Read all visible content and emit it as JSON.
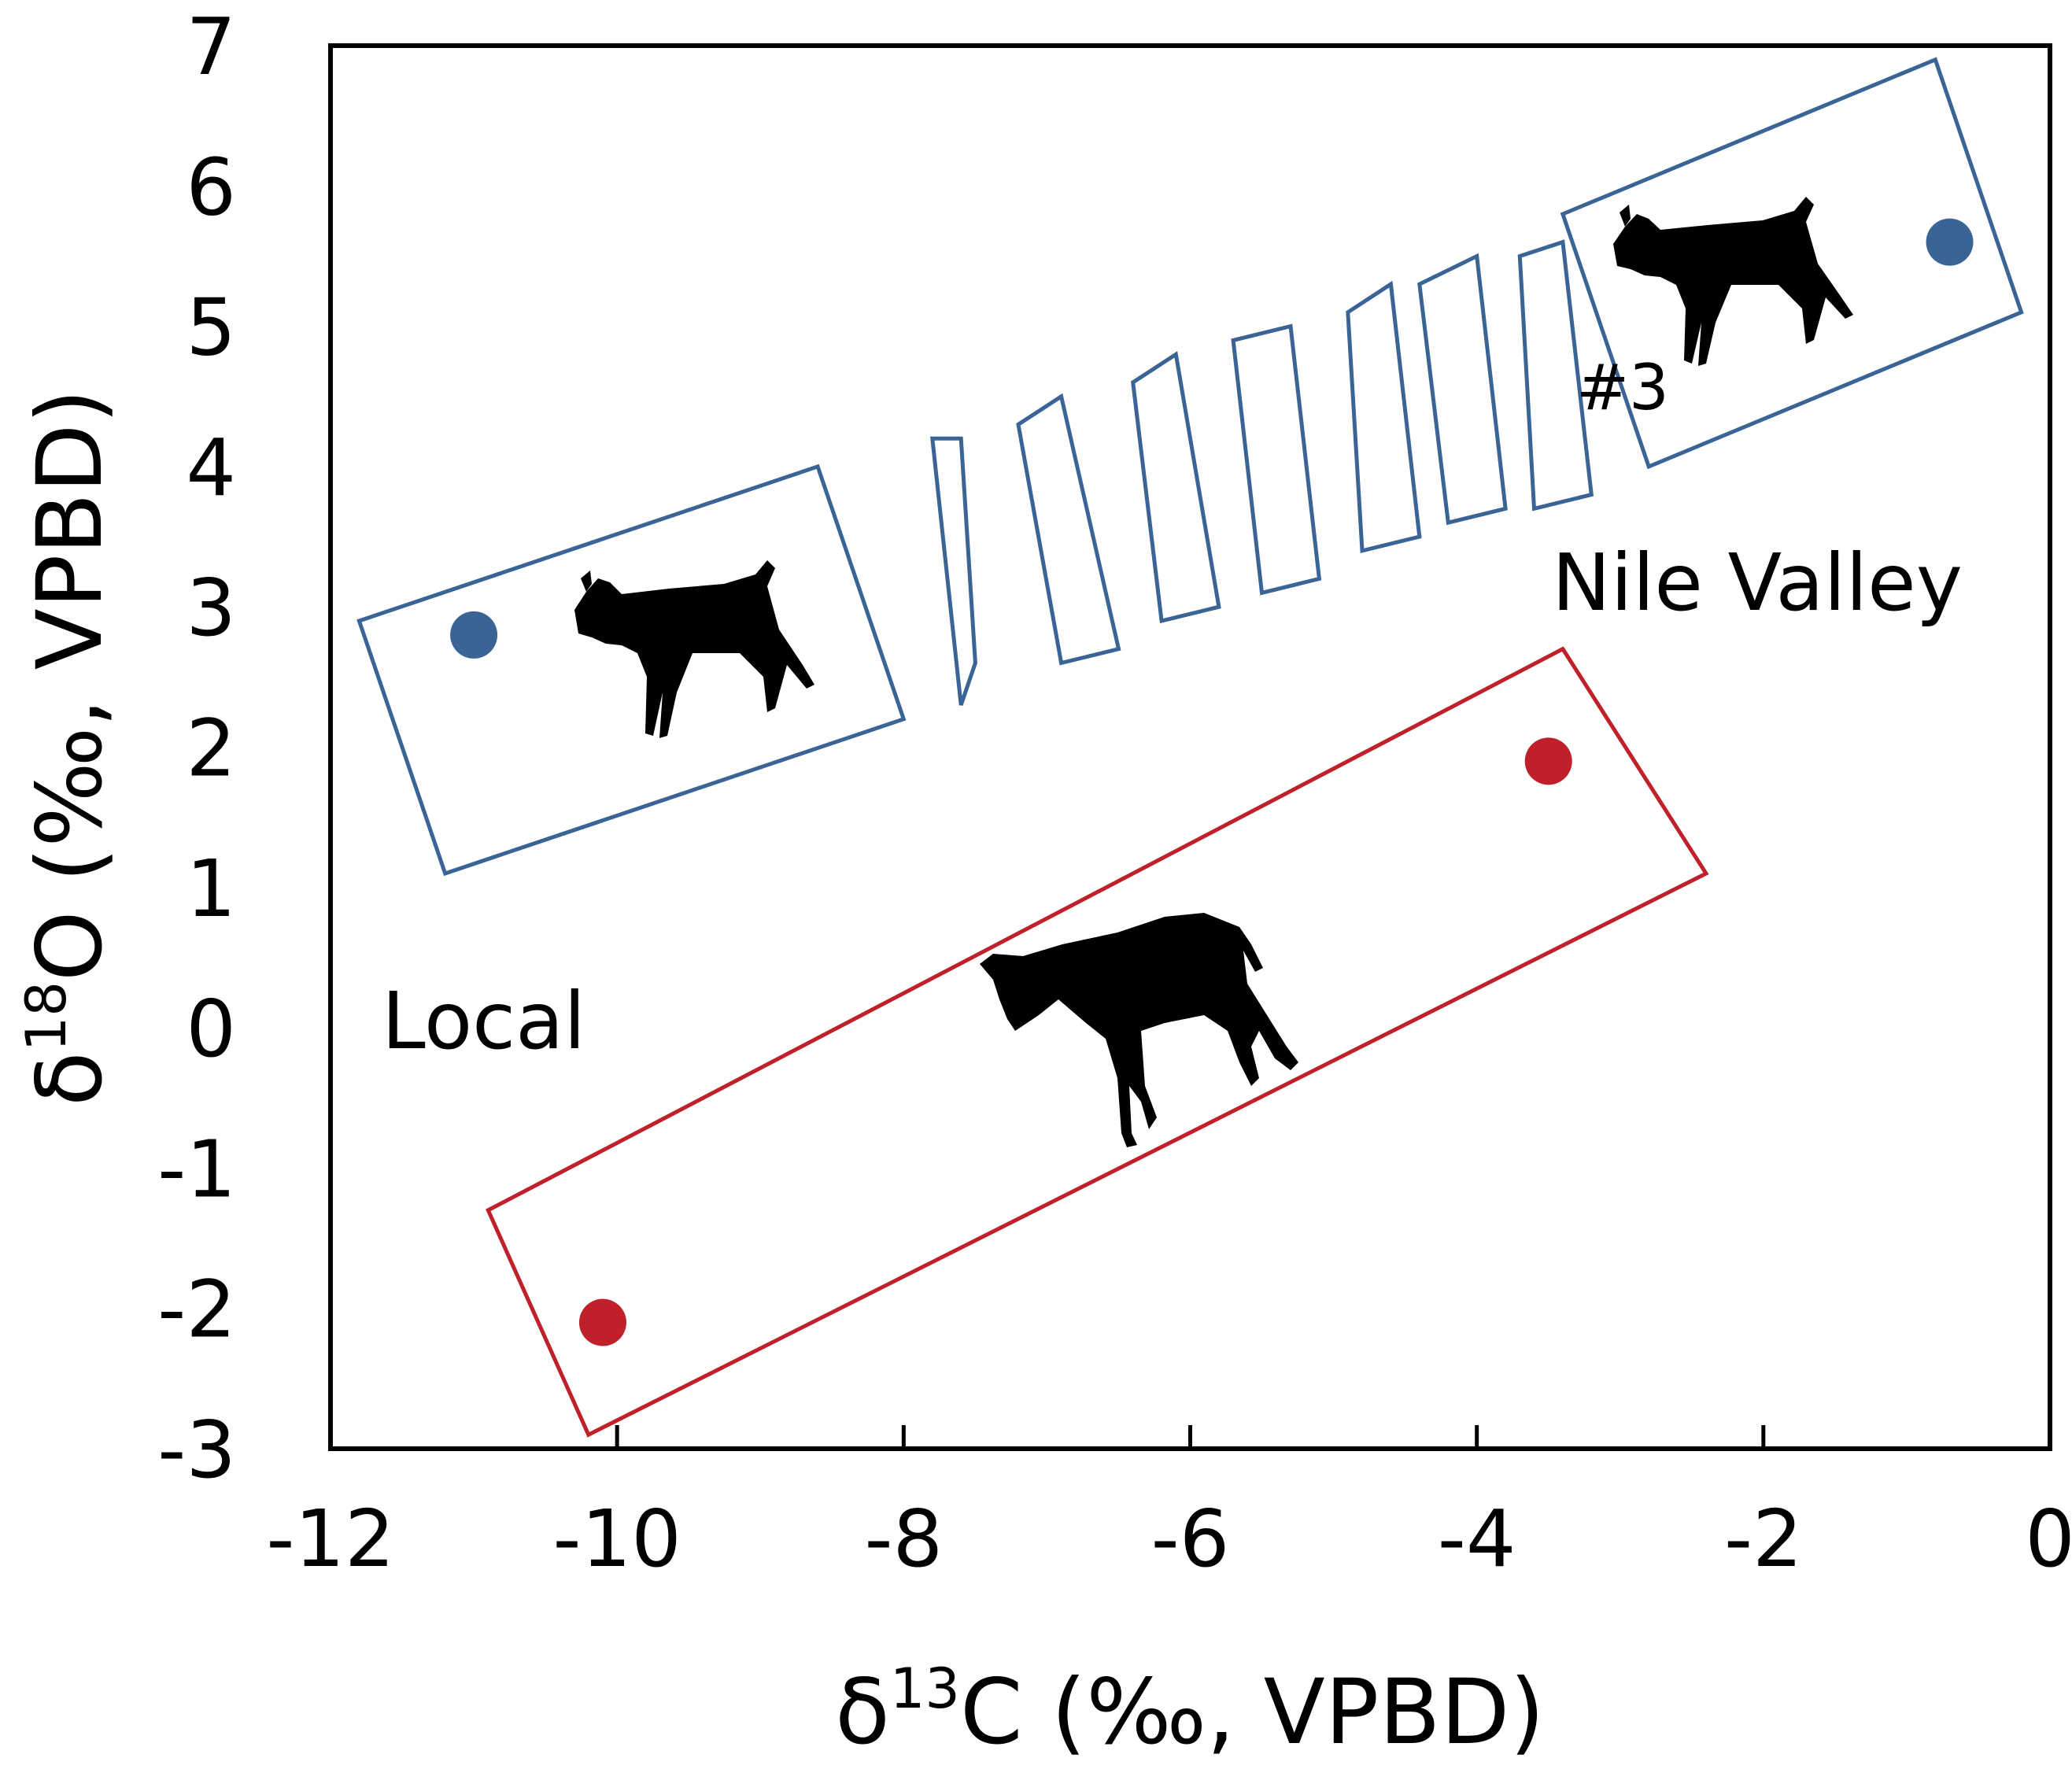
{
  "chart_data": {
    "type": "scatter",
    "title": "",
    "xlabel": "δ13C (‰, VPBD)",
    "ylabel": "δ18O (‰, VPBD)",
    "xlabel_parts": {
      "prefix": "δ",
      "sup": "13",
      "suffix": "C (‰, VPBD)"
    },
    "ylabel_parts": {
      "prefix": "δ",
      "sup": "18",
      "suffix": "O (‰, VPBD)"
    },
    "xlim": [
      -12,
      0
    ],
    "ylim": [
      -3,
      7
    ],
    "xticks": [
      -12,
      -10,
      -8,
      -6,
      -4,
      -2,
      0
    ],
    "yticks": [
      -3,
      -2,
      -1,
      0,
      1,
      2,
      3,
      4,
      5,
      6,
      7
    ],
    "grid": false,
    "series": [
      {
        "color": "#3a6496",
        "points": [
          {
            "x": -11.0,
            "y": 2.8
          },
          {
            "x": -0.7,
            "y": 5.6
          }
        ]
      },
      {
        "color": "#c0202a",
        "points": [
          {
            "x": -10.1,
            "y": -2.1
          },
          {
            "x": -3.5,
            "y": 1.9
          }
        ]
      }
    ],
    "regions": [
      {
        "color": "#3a6496",
        "shape": "goat-left-box",
        "corners": [
          [
            -11.8,
            2.9
          ],
          [
            -8.6,
            4.0
          ],
          [
            -8.0,
            2.2
          ],
          [
            -11.2,
            1.1
          ]
        ]
      },
      {
        "color": "#3a6496",
        "shape": "stripe",
        "corners": [
          [
            -7.8,
            4.2
          ],
          [
            -7.6,
            4.2
          ],
          [
            -7.5,
            2.6
          ],
          [
            -7.6,
            2.3
          ]
        ]
      },
      {
        "color": "#3a6496",
        "shape": "stripe",
        "corners": [
          [
            -7.2,
            4.3
          ],
          [
            -6.9,
            4.5
          ],
          [
            -6.5,
            2.7
          ],
          [
            -6.9,
            2.6
          ]
        ]
      },
      {
        "color": "#3a6496",
        "shape": "stripe",
        "corners": [
          [
            -6.4,
            4.6
          ],
          [
            -6.1,
            4.8
          ],
          [
            -5.8,
            3.0
          ],
          [
            -6.2,
            2.9
          ]
        ]
      },
      {
        "color": "#3a6496",
        "shape": "stripe",
        "corners": [
          [
            -5.7,
            4.9
          ],
          [
            -5.3,
            5.0
          ],
          [
            -5.1,
            3.2
          ],
          [
            -5.5,
            3.1
          ]
        ]
      },
      {
        "color": "#3a6496",
        "shape": "stripe",
        "corners": [
          [
            -4.9,
            5.1
          ],
          [
            -4.6,
            5.3
          ],
          [
            -4.4,
            3.5
          ],
          [
            -4.8,
            3.4
          ]
        ]
      },
      {
        "color": "#3a6496",
        "shape": "stripe",
        "corners": [
          [
            -4.4,
            5.3
          ],
          [
            -4.0,
            5.5
          ],
          [
            -3.8,
            3.7
          ],
          [
            -4.2,
            3.6
          ]
        ]
      },
      {
        "color": "#3a6496",
        "shape": "stripe",
        "corners": [
          [
            -3.7,
            5.5
          ],
          [
            -3.4,
            5.6
          ],
          [
            -3.2,
            3.8
          ],
          [
            -3.6,
            3.7
          ]
        ]
      },
      {
        "color": "#3a6496",
        "shape": "goat-right-box",
        "corners": [
          [
            -3.4,
            5.8
          ],
          [
            -0.8,
            6.9
          ],
          [
            -0.2,
            5.1
          ],
          [
            -2.8,
            4.0
          ]
        ]
      },
      {
        "color": "#c0202a",
        "shape": "donkey-box",
        "corners": [
          [
            -10.9,
            -1.3
          ],
          [
            -3.4,
            2.7
          ],
          [
            -2.4,
            1.1
          ],
          [
            -10.2,
            -2.9
          ]
        ]
      }
    ],
    "annotations": [
      {
        "text": "Nile Valley",
        "x": -2.8,
        "y": 3.2
      },
      {
        "text": "Local",
        "x": -11.4,
        "y": 0.0
      },
      {
        "text": "#3",
        "x": -3.1,
        "y": 4.6
      }
    ],
    "icons": [
      "goat-icon",
      "goat-icon",
      "donkey-icon"
    ]
  }
}
